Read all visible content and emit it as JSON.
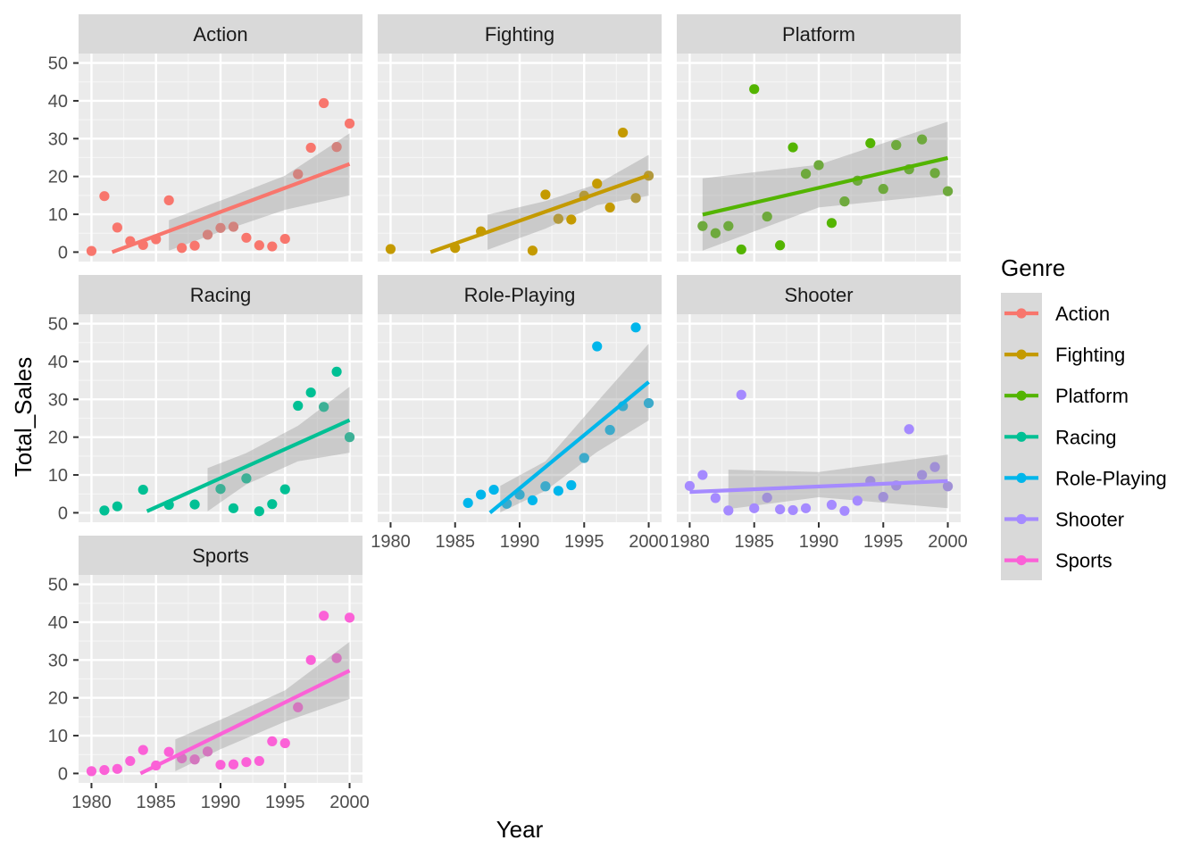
{
  "chart_data": {
    "type": "scatter",
    "subtype": "faceted scatter with linear fit and confidence band",
    "xlabel": "Year",
    "ylabel": "Total_Sales",
    "xlim": [
      1979,
      2001
    ],
    "ylim": [
      -2.5,
      52.5
    ],
    "x_ticks": [
      1980,
      1985,
      1990,
      1995,
      2000
    ],
    "y_ticks": [
      0,
      10,
      20,
      30,
      40,
      50
    ],
    "grid": true,
    "legend": {
      "title": "Genre",
      "position": "right"
    },
    "facets": [
      {
        "name": "Action",
        "color": "#F8766D",
        "points": [
          [
            1980,
            0.3
          ],
          [
            1981,
            14.8
          ],
          [
            1982,
            6.5
          ],
          [
            1983,
            2.9
          ],
          [
            1984,
            1.9
          ],
          [
            1985,
            3.4
          ],
          [
            1986,
            13.7
          ],
          [
            1987,
            1.1
          ],
          [
            1988,
            1.7
          ],
          [
            1989,
            4.6
          ],
          [
            1990,
            6.4
          ],
          [
            1991,
            6.7
          ],
          [
            1992,
            3.8
          ],
          [
            1993,
            1.8
          ],
          [
            1994,
            1.5
          ],
          [
            1995,
            3.5
          ],
          [
            1996,
            20.6
          ],
          [
            1997,
            27.6
          ],
          [
            1998,
            39.4
          ],
          [
            1999,
            27.8
          ],
          [
            2000,
            34.0
          ]
        ],
        "fit": {
          "x": [
            1981.6,
            2000
          ],
          "y": [
            0,
            23.3
          ]
        },
        "band": {
          "x": [
            1986,
            1990,
            1995,
            2000
          ],
          "upper": [
            8.4,
            13.6,
            20.2,
            31.4
          ],
          "lower": [
            0.4,
            5.4,
            11.2,
            15.0
          ]
        }
      },
      {
        "name": "Fighting",
        "color": "#C49A00",
        "points": [
          [
            1980,
            0.8
          ],
          [
            1985,
            1.1
          ],
          [
            1987,
            5.5
          ],
          [
            1991,
            0.4
          ],
          [
            1992,
            15.2
          ],
          [
            1993,
            8.8
          ],
          [
            1994,
            8.6
          ],
          [
            1995,
            14.9
          ],
          [
            1996,
            18.1
          ],
          [
            1997,
            11.8
          ],
          [
            1998,
            31.6
          ],
          [
            1999,
            14.3
          ],
          [
            2000,
            20.2
          ]
        ],
        "fit": {
          "x": [
            1983.1,
            2000
          ],
          "y": [
            0,
            20.3
          ]
        },
        "band": {
          "x": [
            1987.5,
            1992,
            1996,
            2000
          ],
          "upper": [
            9.9,
            13.5,
            18.0,
            25.7
          ],
          "lower": [
            0.6,
            6.2,
            12.4,
            14.9
          ]
        }
      },
      {
        "name": "Platform",
        "color": "#53B400",
        "points": [
          [
            1981,
            6.9
          ],
          [
            1982,
            5.0
          ],
          [
            1983,
            6.9
          ],
          [
            1984,
            0.7
          ],
          [
            1985,
            43.1
          ],
          [
            1986,
            9.4
          ],
          [
            1987,
            1.8
          ],
          [
            1988,
            27.7
          ],
          [
            1989,
            20.7
          ],
          [
            1990,
            23.0
          ],
          [
            1991,
            7.7
          ],
          [
            1992,
            13.4
          ],
          [
            1993,
            18.9
          ],
          [
            1994,
            28.8
          ],
          [
            1995,
            16.7
          ],
          [
            1996,
            28.3
          ],
          [
            1997,
            21.9
          ],
          [
            1998,
            29.8
          ],
          [
            1999,
            20.9
          ],
          [
            2000,
            16.1
          ]
        ],
        "fit": {
          "x": [
            1981,
            2000
          ],
          "y": [
            9.9,
            24.9
          ]
        },
        "band": {
          "x": [
            1981,
            1990,
            2000
          ],
          "upper": [
            19.5,
            23.1,
            34.5
          ],
          "lower": [
            0.4,
            11.8,
            15.3
          ]
        }
      },
      {
        "name": "Racing",
        "color": "#00C094",
        "points": [
          [
            1981,
            0.6
          ],
          [
            1982,
            1.7
          ],
          [
            1984,
            6.1
          ],
          [
            1986,
            2.1
          ],
          [
            1988,
            2.2
          ],
          [
            1990,
            6.3
          ],
          [
            1991,
            1.2
          ],
          [
            1992,
            9.1
          ],
          [
            1993,
            0.4
          ],
          [
            1994,
            2.3
          ],
          [
            1995,
            6.2
          ],
          [
            1996,
            28.3
          ],
          [
            1997,
            31.8
          ],
          [
            1998,
            28.0
          ],
          [
            1999,
            37.3
          ],
          [
            2000,
            20.0
          ]
        ],
        "fit": {
          "x": [
            1984.3,
            2000
          ],
          "y": [
            0.4,
            24.5
          ]
        },
        "band": {
          "x": [
            1989,
            1992,
            1996,
            2000
          ],
          "upper": [
            11.8,
            15.8,
            23.0,
            33.3
          ],
          "lower": [
            0.4,
            7.5,
            13.6,
            15.9
          ]
        }
      },
      {
        "name": "Role-Playing",
        "color": "#00B6EB",
        "points": [
          [
            1986,
            2.6
          ],
          [
            1987,
            4.8
          ],
          [
            1988,
            6.1
          ],
          [
            1989,
            2.4
          ],
          [
            1990,
            4.8
          ],
          [
            1991,
            3.3
          ],
          [
            1992,
            7.0
          ],
          [
            1993,
            5.8
          ],
          [
            1994,
            7.3
          ],
          [
            1995,
            14.5
          ],
          [
            1996,
            44.0
          ],
          [
            1997,
            21.9
          ],
          [
            1998,
            28.2
          ],
          [
            1999,
            49.0
          ],
          [
            2000,
            29.0
          ]
        ],
        "fit": {
          "x": [
            1987.7,
            2000
          ],
          "y": [
            0,
            34.6
          ]
        },
        "band": {
          "x": [
            1988.5,
            1992,
            1996,
            2000
          ],
          "upper": [
            7.1,
            13.6,
            29.3,
            44.7
          ],
          "lower": [
            0.1,
            5.8,
            16.1,
            24.4
          ]
        }
      },
      {
        "name": "Shooter",
        "color": "#A58AFF",
        "points": [
          [
            1980,
            7.1
          ],
          [
            1981,
            10.0
          ],
          [
            1982,
            3.9
          ],
          [
            1983,
            0.6
          ],
          [
            1984,
            31.2
          ],
          [
            1985,
            1.2
          ],
          [
            1986,
            4.0
          ],
          [
            1987,
            0.9
          ],
          [
            1988,
            0.7
          ],
          [
            1989,
            1.2
          ],
          [
            1991,
            2.1
          ],
          [
            1992,
            0.5
          ],
          [
            1993,
            3.2
          ],
          [
            1994,
            8.4
          ],
          [
            1995,
            4.2
          ],
          [
            1996,
            7.2
          ],
          [
            1997,
            22.1
          ],
          [
            1998,
            10.0
          ],
          [
            1999,
            12.1
          ],
          [
            2000,
            7.0
          ]
        ],
        "fit": {
          "x": [
            1980,
            2000
          ],
          "y": [
            5.5,
            8.4
          ]
        },
        "band": {
          "x": [
            1983,
            1990,
            2000
          ],
          "upper": [
            11.4,
            10.8,
            15.4
          ],
          "lower": [
            1.0,
            4.1,
            1.2
          ]
        }
      },
      {
        "name": "Sports",
        "color": "#FB61D7",
        "points": [
          [
            1980,
            0.6
          ],
          [
            1981,
            0.9
          ],
          [
            1982,
            1.2
          ],
          [
            1983,
            3.3
          ],
          [
            1984,
            6.2
          ],
          [
            1985,
            2.1
          ],
          [
            1986,
            5.7
          ],
          [
            1987,
            4.0
          ],
          [
            1988,
            3.7
          ],
          [
            1989,
            5.8
          ],
          [
            1990,
            2.3
          ],
          [
            1991,
            2.4
          ],
          [
            1992,
            3.0
          ],
          [
            1993,
            3.3
          ],
          [
            1994,
            8.5
          ],
          [
            1995,
            8.0
          ],
          [
            1996,
            17.5
          ],
          [
            1997,
            30.0
          ],
          [
            1998,
            41.7
          ],
          [
            1999,
            30.5
          ],
          [
            2000,
            41.2
          ]
        ],
        "fit": {
          "x": [
            1983.8,
            2000
          ],
          "y": [
            0,
            27.2
          ]
        },
        "band": {
          "x": [
            1986.5,
            1990,
            1995,
            2000
          ],
          "upper": [
            9.0,
            14.2,
            22.0,
            34.8
          ],
          "lower": [
            0.6,
            6.4,
            13.7,
            19.7
          ]
        }
      }
    ]
  }
}
